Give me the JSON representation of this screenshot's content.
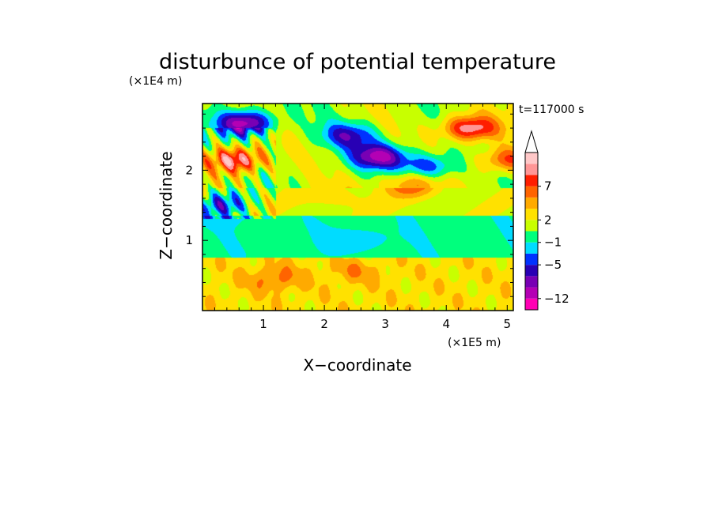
{
  "chart_data": {
    "type": "heatmap",
    "title": "disturbunce of potential temperature",
    "xlabel": "X−coordinate",
    "ylabel": "Z−coordinate",
    "x_scale_label": "(×1E5 m)",
    "y_scale_label": "(×1E4 m)",
    "time_label": "t=117000 s",
    "xlim": [
      0,
      5.1
    ],
    "ylim": [
      0,
      2.95
    ],
    "x_ticks": [
      "1",
      "2",
      "3",
      "4",
      "5"
    ],
    "x_tick_values": [
      1,
      2,
      3,
      4,
      5
    ],
    "y_ticks": [
      "1",
      "2"
    ],
    "y_tick_values": [
      1,
      2
    ],
    "colorbar": {
      "labels": [
        "7",
        "2",
        "−1",
        "−5",
        "−12"
      ],
      "levels": [
        7,
        2,
        -1,
        -5,
        -12
      ],
      "colors": [
        "#ff00b4",
        "#b400b4",
        "#7800b4",
        "#2800b4",
        "#0032ff",
        "#00dcff",
        "#00ff7d",
        "#c8ff00",
        "#ffe100",
        "#ffaa00",
        "#ff6400",
        "#ff1e00",
        "#ff9696",
        "#ffc8c8"
      ],
      "extend": "max"
    },
    "features": [
      {
        "x": 0.7,
        "z": 2.68,
        "value": -10
      },
      {
        "x": 0.55,
        "z": 2.15,
        "value": 9
      },
      {
        "x": 0.3,
        "z": 1.5,
        "value": -5
      },
      {
        "x": 2.9,
        "z": 2.2,
        "value": -9
      },
      {
        "x": 2.4,
        "z": 2.5,
        "value": -6
      },
      {
        "x": 3.7,
        "z": 2.05,
        "value": -6
      },
      {
        "x": 3.4,
        "z": 1.8,
        "value": 5
      },
      {
        "x": 2.2,
        "z": 1.62,
        "value": 2
      },
      {
        "x": 4.4,
        "z": 2.6,
        "value": 9
      },
      {
        "x": 5.0,
        "z": 2.15,
        "value": 6
      },
      {
        "x": 2.6,
        "z": 1.0,
        "value": -2
      },
      {
        "x": 2.5,
        "z": 0.55,
        "value": 2
      },
      {
        "x": 1.2,
        "z": 0.45,
        "value": 3
      },
      {
        "x": 3.2,
        "z": 0.3,
        "value": 0
      }
    ]
  }
}
